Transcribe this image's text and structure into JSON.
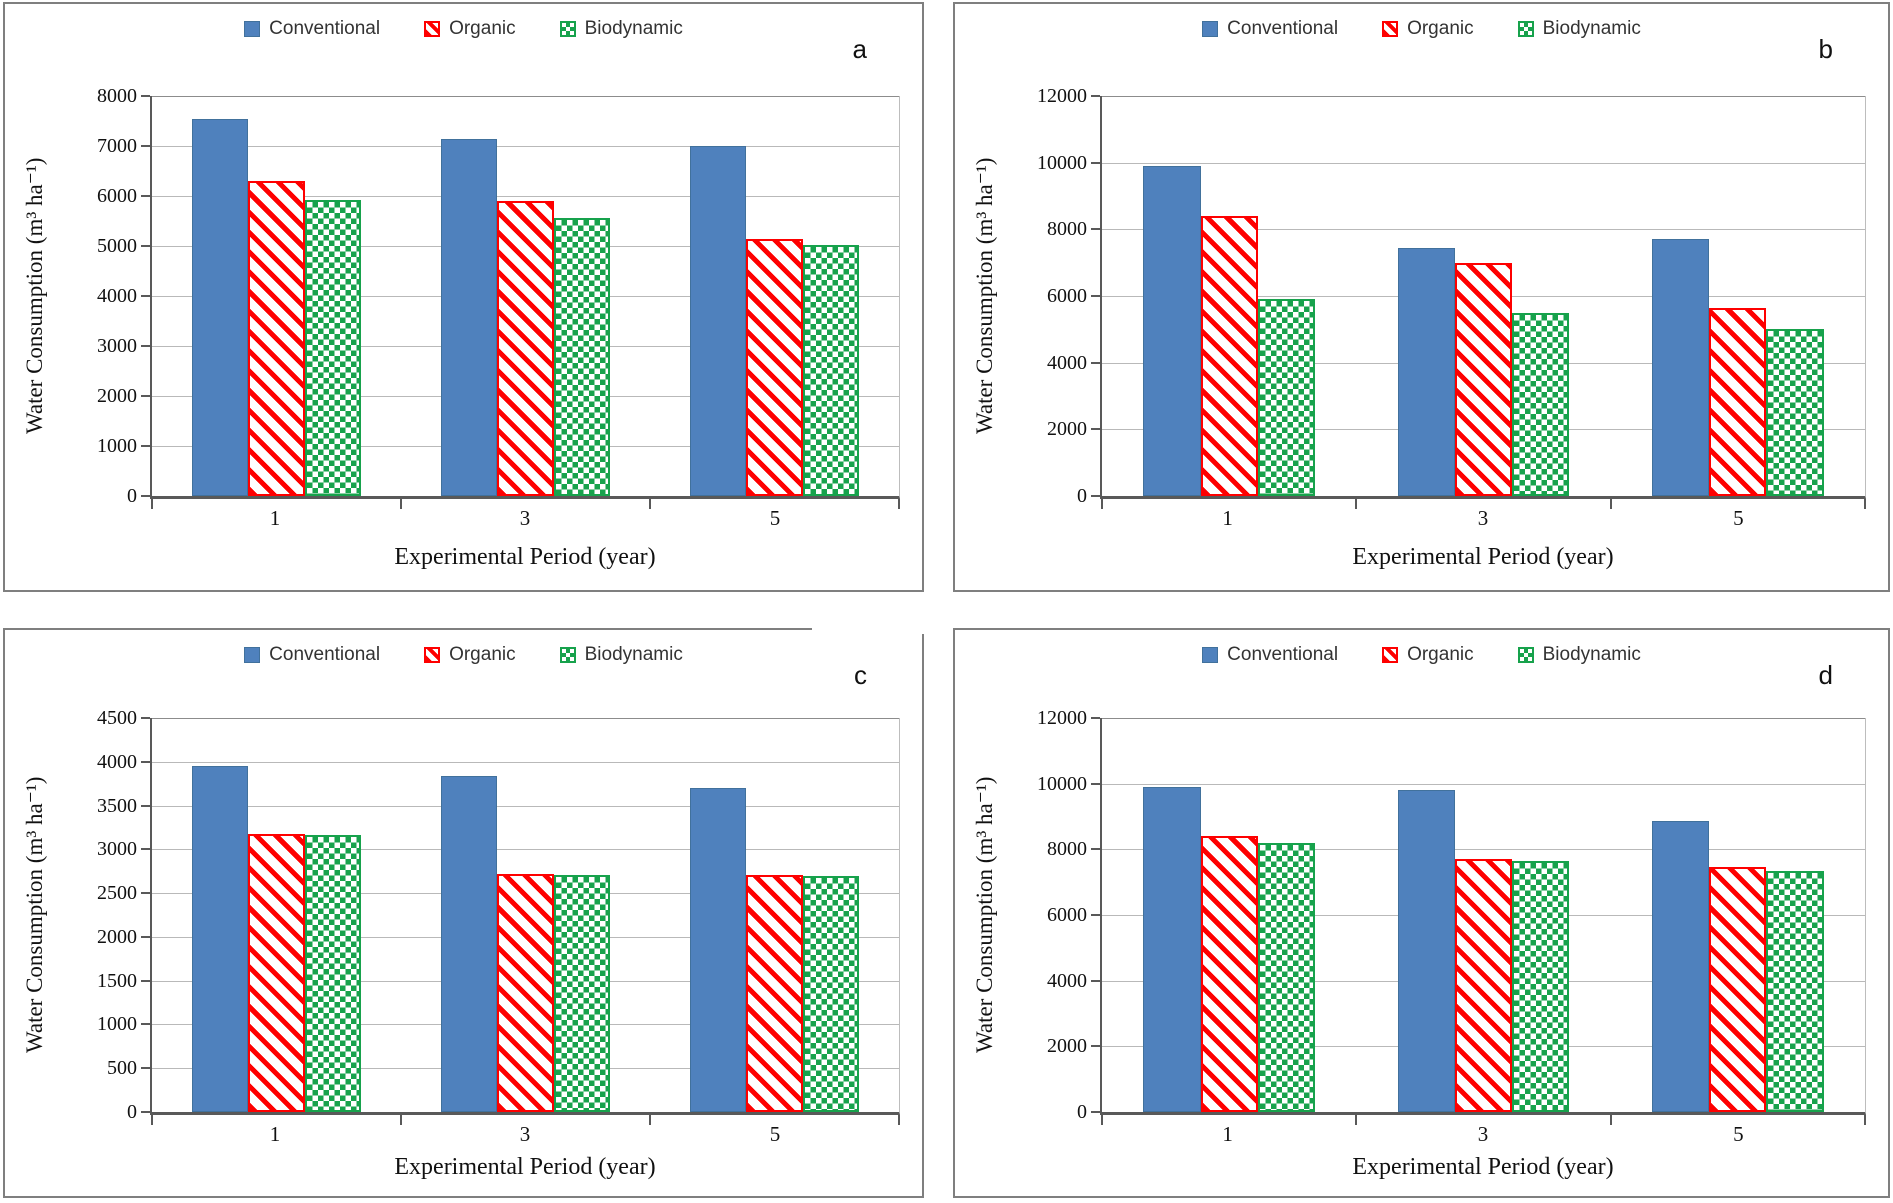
{
  "colors": {
    "conventional": "#4F81BD",
    "conventional_border": "#41719C",
    "organic": "#FE0000",
    "biodynamic": "#17A24C",
    "grid": "#b9b9b9",
    "axis": "#595959"
  },
  "legend_labels": [
    "Conventional",
    "Organic",
    "Biodynamic"
  ],
  "chart_data": [
    {
      "type": "bar",
      "panel_label": "a",
      "title": "",
      "xlabel": "Experimental Period (year)",
      "ylabel": "Water Consumption (m³ ha⁻¹)",
      "categories": [
        "1",
        "3",
        "5"
      ],
      "ylim": [
        0,
        8000
      ],
      "ystep": 1000,
      "yticks": [
        0,
        1000,
        2000,
        3000,
        4000,
        5000,
        6000,
        7000,
        8000
      ],
      "grid": true,
      "legend_position": "top",
      "series": [
        {
          "name": "Conventional",
          "values": [
            7550,
            7150,
            7000
          ]
        },
        {
          "name": "Organic",
          "values": [
            6300,
            5900,
            5150
          ]
        },
        {
          "name": "Biodynamic",
          "values": [
            5930,
            5570,
            5030
          ]
        }
      ]
    },
    {
      "type": "bar",
      "panel_label": "b",
      "title": "",
      "xlabel": "Experimental Period (year)",
      "ylabel": "Water Consumption (m³ ha⁻¹)",
      "categories": [
        "1",
        "3",
        "5"
      ],
      "ylim": [
        0,
        12000
      ],
      "ystep": 2000,
      "yticks": [
        0,
        2000,
        4000,
        6000,
        8000,
        10000,
        12000
      ],
      "grid": true,
      "legend_position": "top",
      "series": [
        {
          "name": "Conventional",
          "values": [
            9900,
            7450,
            7700
          ]
        },
        {
          "name": "Organic",
          "values": [
            8400,
            7000,
            5650
          ]
        },
        {
          "name": "Biodynamic",
          "values": [
            5900,
            5500,
            5000
          ]
        }
      ]
    },
    {
      "type": "bar",
      "panel_label": "c",
      "title": "",
      "xlabel": "Experimental Period (year)",
      "ylabel": "Water Consumption (m³ ha⁻¹)",
      "categories": [
        "1",
        "3",
        "5"
      ],
      "ylim": [
        0,
        4500
      ],
      "ystep": 500,
      "yticks": [
        0,
        500,
        1000,
        1500,
        2000,
        2500,
        3000,
        3500,
        4000,
        4500
      ],
      "grid": true,
      "legend_position": "top",
      "series": [
        {
          "name": "Conventional",
          "values": [
            3950,
            3840,
            3700
          ]
        },
        {
          "name": "Organic",
          "values": [
            3180,
            2720,
            2710
          ]
        },
        {
          "name": "Biodynamic",
          "values": [
            3160,
            2710,
            2700
          ]
        }
      ]
    },
    {
      "type": "bar",
      "panel_label": "d",
      "title": "",
      "xlabel": "Experimental Period (year)",
      "ylabel": "Water Consumption (m³ ha⁻¹)",
      "categories": [
        "1",
        "3",
        "5"
      ],
      "ylim": [
        0,
        12000
      ],
      "ystep": 2000,
      "yticks": [
        0,
        2000,
        4000,
        6000,
        8000,
        10000,
        12000
      ],
      "grid": true,
      "legend_position": "top",
      "series": [
        {
          "name": "Conventional",
          "values": [
            9900,
            9800,
            8850
          ]
        },
        {
          "name": "Organic",
          "values": [
            8400,
            7700,
            7450
          ]
        },
        {
          "name": "Biodynamic",
          "values": [
            8200,
            7650,
            7350
          ]
        }
      ]
    }
  ]
}
